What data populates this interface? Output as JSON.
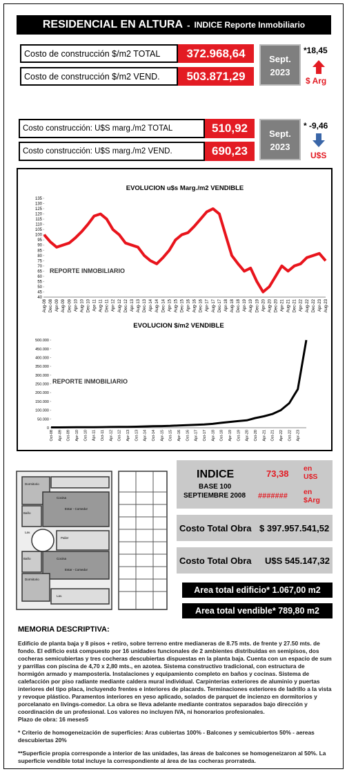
{
  "header": {
    "title": "RESIDENCIAL EN ALTURA",
    "separator": "-",
    "subtitle": "INDICE Reporte Inmobiliario"
  },
  "pesos": {
    "rows": [
      {
        "label": "Costo de construcción $/m2 TOTAL",
        "value": "372.968,64"
      },
      {
        "label": "Costo de construcción $/m2 VEND.",
        "value": "503.871,29"
      }
    ],
    "date_month": "Sept.",
    "date_year": "2023",
    "change": "*18,45",
    "unit": "$ Arg"
  },
  "dollars": {
    "rows": [
      {
        "label": "Costo construcción: U$S marg./m2 TOTAL",
        "value": "510,92"
      },
      {
        "label": "Costo construcción: U$S marg./m2 VEND.",
        "value": "690,23"
      }
    ],
    "date_month": "Sept.",
    "date_year": "2023",
    "change": "* -9,46",
    "unit": "U$S"
  },
  "chart_data": [
    {
      "type": "line",
      "title": "EVOLUCION u$s Marg./m2 VENDIBLE",
      "watermark": "REPORTE INMOBILIARIO",
      "color": "#e8141c",
      "categories": [
        "Aug-08",
        "Dec-08",
        "Apr-09",
        "Aug-09",
        "Dec-09",
        "Apr-10",
        "Aug-10",
        "Dec-10",
        "Apr-11",
        "Aug-11",
        "Dec-11",
        "Apr-12",
        "Aug-12",
        "Dec-12",
        "Apr-13",
        "Aug-13",
        "Dec-13",
        "Apr-14",
        "Aug-14",
        "Dec-14",
        "Apr-15",
        "Aug-15",
        "Dec-15",
        "Apr-16",
        "Aug-16",
        "Dec-16",
        "Apr-17",
        "Aug-17",
        "Dec-17",
        "Apr-18",
        "Aug-18",
        "Dec-18",
        "Apr-19",
        "Aug-19",
        "Dec-19",
        "Apr-20",
        "Aug-20",
        "Dec-20",
        "Apr-21",
        "Aug-21",
        "Dec-21",
        "Apr-22",
        "Aug-22",
        "Dec-22",
        "Apr-23",
        "Aug-23"
      ],
      "values": [
        100,
        93,
        88,
        90,
        92,
        97,
        103,
        110,
        118,
        120,
        115,
        105,
        100,
        92,
        90,
        88,
        80,
        75,
        72,
        78,
        85,
        95,
        100,
        102,
        108,
        115,
        122,
        125,
        120,
        100,
        80,
        72,
        65,
        68,
        55,
        45,
        50,
        60,
        70,
        65,
        70,
        72,
        78,
        80,
        82,
        75
      ],
      "ylim": [
        40,
        135
      ],
      "yticks": [
        40,
        45,
        50,
        55,
        60,
        65,
        70,
        75,
        80,
        85,
        90,
        95,
        100,
        105,
        110,
        115,
        120,
        125,
        130,
        135
      ]
    },
    {
      "type": "line",
      "title": "EVOLUCION $/m2 VENDIBLE",
      "watermark": "REPORTE INMOBILIARIO",
      "color": "#000000",
      "categories": [
        "Oct-08",
        "Apr-09",
        "Oct-09",
        "Apr-10",
        "Oct-10",
        "Apr-11",
        "Oct-11",
        "Apr-12",
        "Oct-12",
        "Apr-13",
        "Oct-13",
        "Apr-14",
        "Oct-14",
        "Apr-15",
        "Oct-15",
        "Apr-16",
        "Oct-16",
        "Apr-17",
        "Oct-17",
        "Apr-18",
        "Oct-18",
        "Apr-19",
        "Oct-19",
        "Apr-20",
        "Oct-20",
        "Apr-21",
        "Oct-21",
        "Apr-22",
        "Oct-22",
        "Apr-23",
        null
      ],
      "values": [
        2000,
        2100,
        2300,
        2600,
        2900,
        3300,
        3700,
        4200,
        4700,
        5300,
        6000,
        7500,
        8500,
        9500,
        10500,
        13000,
        15000,
        17000,
        19000,
        22000,
        28000,
        33000,
        38000,
        42000,
        55000,
        65000,
        78000,
        100000,
        140000,
        220000,
        500000
      ],
      "ylim": [
        0,
        520000
      ],
      "yticks": [
        0,
        {
          "value": 50000,
          "label": "50.000"
        },
        {
          "value": 100000,
          "label": "100.000"
        },
        {
          "value": 150000,
          "label": "150.000"
        },
        {
          "value": 200000,
          "label": "200.000"
        },
        {
          "value": 250000,
          "label": "250.000"
        },
        {
          "value": 300000,
          "label": "300.000"
        },
        {
          "value": 350000,
          "label": "350.000"
        },
        {
          "value": 400000,
          "label": "400.000"
        },
        {
          "value": 450000,
          "label": "450.000"
        },
        {
          "value": 500000,
          "label": "500.000"
        }
      ]
    }
  ],
  "plan": {
    "rooms": [
      "Dormitorio",
      "Baño",
      "Cocina",
      "Estar - Comedor",
      "Palier",
      "Lav.",
      "Dormitorio",
      "Baño",
      "Cocina",
      "Estar - Comedor",
      "Lav."
    ]
  },
  "index": {
    "title": "INDICE",
    "base": "BASE 100",
    "base_date": "SEPTIEMBRE 2008",
    "usd_value": "73,38",
    "usd_unit": "en U$S",
    "ars_value": "#######",
    "ars_unit": "en $Arg"
  },
  "totals": [
    {
      "label": "Costo Total Obra",
      "value": "$ 397.957.541,52"
    },
    {
      "label": "Costo Total Obra",
      "value": "U$S 545.147,32"
    }
  ],
  "areas": [
    "Area total edificio* 1.067,00 m2",
    "Area total vendible* 789,80 m2"
  ],
  "memoria": {
    "title": "MEMORIA DESCRIPTIVA:",
    "text": "Edificio de planta baja y 8 pisos + retiro, sobre terreno entre medianeras de 8.75 mts. de frente y 27.50 mts. de fondo. El edificio está compuesto por 16 unidades funcionales de 2 ambientes distribuidas en semipisos, dos cocheras semicubiertas y tres cocheras descubiertas dispuestas en la planta baja. Cuenta con un espacio de sum y parrillas con piscina de 4,70 x 2,80 mts., en azotea. Sistema constructivo tradicional, con estructura de hormigón armado y mampostería. Instalaciones y equipamiento completo en baños y cocinas. Sistema de calefacción por piso radiante mediante caldera mural individual. Carpinterías exteriores de aluminio y puertas interiores del tipo placa, incluyendo frentes e interiores de placards. Terminaciones exteriores de ladrillo a la vista y revoque plástico. Paramentos interiores en yeso aplicado, solados de parquet de incienzo en dormitorios y porcelanato en livings-comedor. La obra se lleva adelante mediante contratos separados bajo dirección y coordinación de un profesional. Los valores no incluyen IVA, ni honorarios profesionales.",
    "term": "Plazo de obra: 16 meses5",
    "note1": "* Criterio de homogeneización de superficies: Aras cubiertas 100% - Balcones y semicubiertos 50% - aereas descubiertas 20%",
    "note2": "**Superficie propia corresponde a interior de las unidades, las áreas de balcones se homogeneizaron al 50%. La superficie vendible total incluye la correspondiente al área de las cocheras prorrateda."
  }
}
